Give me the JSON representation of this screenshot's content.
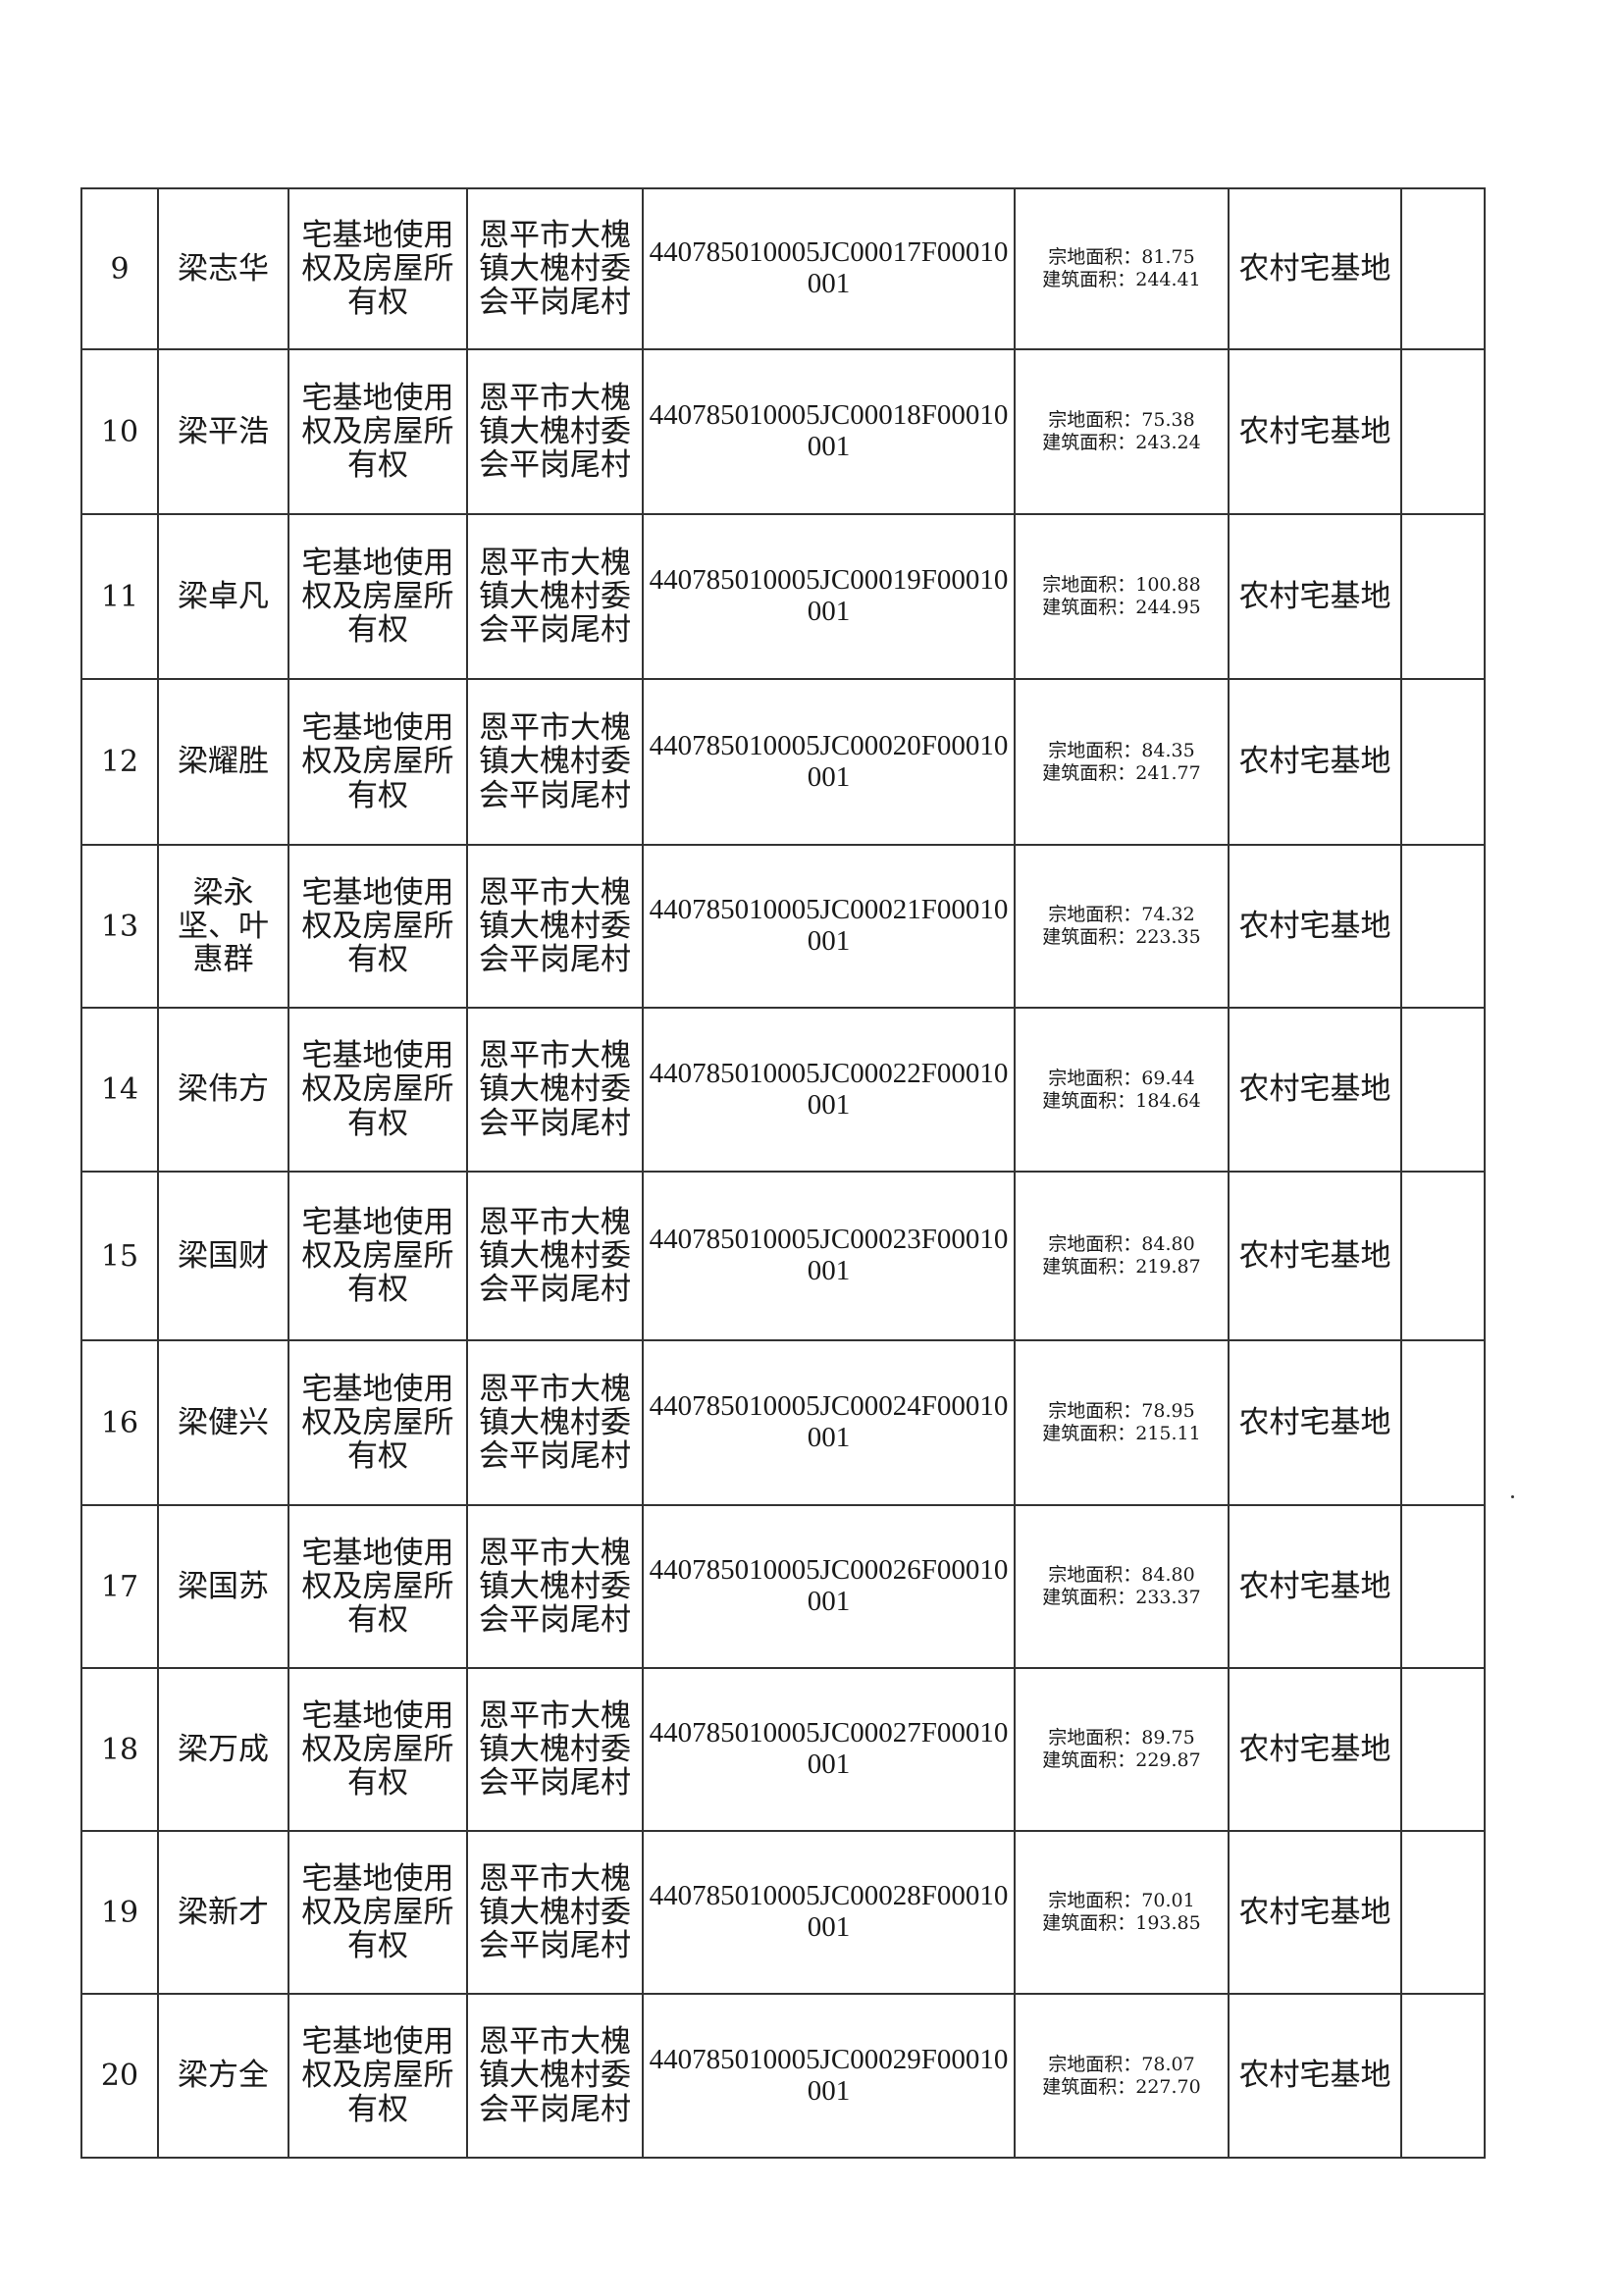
{
  "rows": [
    {
      "index": "9",
      "name": "梁志华",
      "right_type": "宅基地使用权及房屋所有权",
      "location": "恩平市大槐镇大槐村委会平岗尾村",
      "code": "440785010005JC00017F00010001",
      "land_area": "宗地面积：81.75",
      "building_area": "建筑面积：244.41",
      "use": "农村宅基地",
      "note": ""
    },
    {
      "index": "10",
      "name": "梁平浩",
      "right_type": "宅基地使用权及房屋所有权",
      "location": "恩平市大槐镇大槐村委会平岗尾村",
      "code": "440785010005JC00018F00010001",
      "land_area": "宗地面积：75.38",
      "building_area": "建筑面积：243.24",
      "use": "农村宅基地",
      "note": ""
    },
    {
      "index": "11",
      "name": "梁卓凡",
      "right_type": "宅基地使用权及房屋所有权",
      "location": "恩平市大槐镇大槐村委会平岗尾村",
      "code": "440785010005JC00019F00010001",
      "land_area": "宗地面积：100.88",
      "building_area": "建筑面积：244.95",
      "use": "农村宅基地",
      "note": ""
    },
    {
      "index": "12",
      "name": "梁耀胜",
      "right_type": "宅基地使用权及房屋所有权",
      "location": "恩平市大槐镇大槐村委会平岗尾村",
      "code": "440785010005JC00020F00010001",
      "land_area": "宗地面积：84.35",
      "building_area": "建筑面积：241.77",
      "use": "农村宅基地",
      "note": ""
    },
    {
      "index": "13",
      "name": "梁永坚、叶惠群",
      "right_type": "宅基地使用权及房屋所有权",
      "location": "恩平市大槐镇大槐村委会平岗尾村",
      "code": "440785010005JC00021F00010001",
      "land_area": "宗地面积：74.32",
      "building_area": "建筑面积：223.35",
      "use": "农村宅基地",
      "note": ""
    },
    {
      "index": "14",
      "name": "梁伟方",
      "right_type": "宅基地使用权及房屋所有权",
      "location": "恩平市大槐镇大槐村委会平岗尾村",
      "code": "440785010005JC00022F00010001",
      "land_area": "宗地面积：69.44",
      "building_area": "建筑面积：184.64",
      "use": "农村宅基地",
      "note": ""
    },
    {
      "index": "15",
      "name": "梁国财",
      "right_type": "宅基地使用权及房屋所有权",
      "location": "恩平市大槐镇大槐村委会平岗尾村",
      "code": "440785010005JC00023F00010001",
      "land_area": "宗地面积：84.80",
      "building_area": "建筑面积：219.87",
      "use": "农村宅基地",
      "note": ""
    },
    {
      "index": "16",
      "name": "梁健兴",
      "right_type": "宅基地使用权及房屋所有权",
      "location": "恩平市大槐镇大槐村委会平岗尾村",
      "code": "440785010005JC00024F00010001",
      "land_area": "宗地面积：78.95",
      "building_area": "建筑面积：215.11",
      "use": "农村宅基地",
      "note": ""
    },
    {
      "index": "17",
      "name": "梁国苏",
      "right_type": "宅基地使用权及房屋所有权",
      "location": "恩平市大槐镇大槐村委会平岗尾村",
      "code": "440785010005JC00026F00010001",
      "land_area": "宗地面积：84.80",
      "building_area": "建筑面积：233.37",
      "use": "农村宅基地",
      "note": ""
    },
    {
      "index": "18",
      "name": "梁万成",
      "right_type": "宅基地使用权及房屋所有权",
      "location": "恩平市大槐镇大槐村委会平岗尾村",
      "code": "440785010005JC00027F00010001",
      "land_area": "宗地面积：89.75",
      "building_area": "建筑面积：229.87",
      "use": "农村宅基地",
      "note": ""
    },
    {
      "index": "19",
      "name": "梁新才",
      "right_type": "宅基地使用权及房屋所有权",
      "location": "恩平市大槐镇大槐村委会平岗尾村",
      "code": "440785010005JC00028F00010001",
      "land_area": "宗地面积：70.01",
      "building_area": "建筑面积：193.85",
      "use": "农村宅基地",
      "note": ""
    },
    {
      "index": "20",
      "name": "梁方全",
      "right_type": "宅基地使用权及房屋所有权",
      "location": "恩平市大槐镇大槐村委会平岗尾村",
      "code": "440785010005JC00029F00010001",
      "land_area": "宗地面积：78.07",
      "building_area": "建筑面积：227.70",
      "use": "农村宅基地",
      "note": ""
    }
  ]
}
